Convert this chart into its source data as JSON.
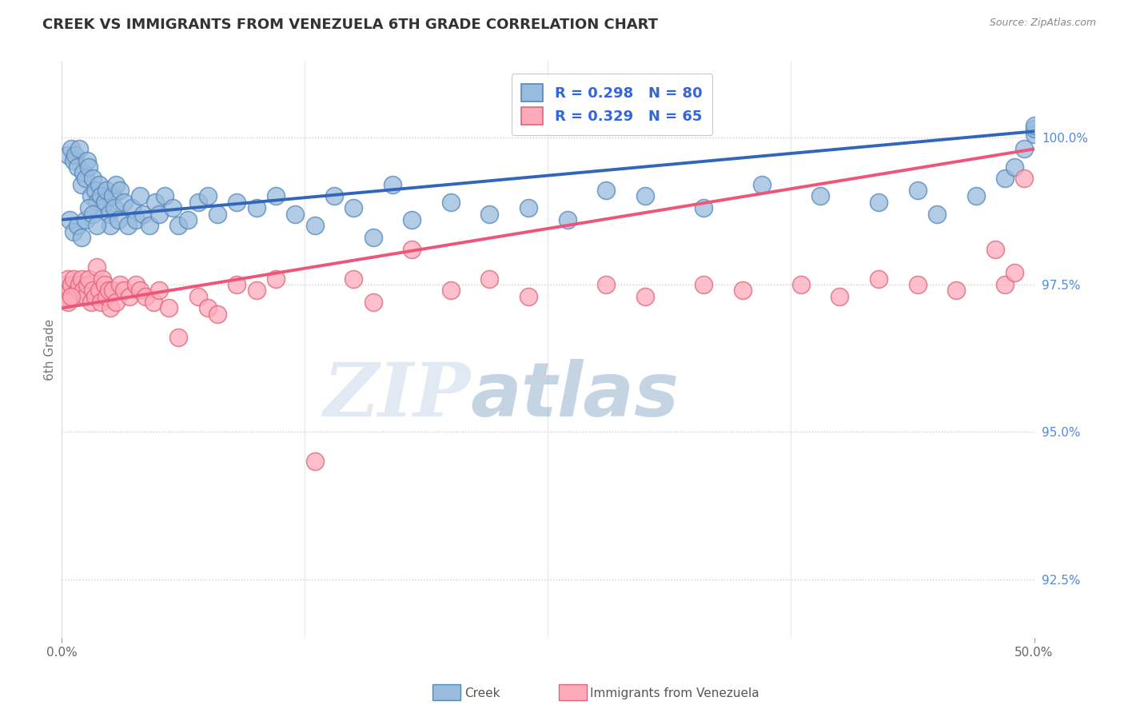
{
  "title": "CREEK VS IMMIGRANTS FROM VENEZUELA 6TH GRADE CORRELATION CHART",
  "source": "Source: ZipAtlas.com",
  "ylabel": "6th Grade",
  "yticks_right": [
    100.0,
    97.5,
    95.0,
    92.5
  ],
  "ytick_labels_right": [
    "100.0%",
    "97.5%",
    "95.0%",
    "92.5%"
  ],
  "xmin": 0.0,
  "xmax": 50.0,
  "ymin": 91.5,
  "ymax": 101.3,
  "blue_scatter_color": "#99BBDD",
  "blue_edge_color": "#5588BB",
  "pink_scatter_color": "#FFAABB",
  "pink_edge_color": "#DD6677",
  "blue_line_color": "#3366BB",
  "pink_line_color": "#EE5577",
  "legend_blue_R": "0.298",
  "legend_blue_N": "80",
  "legend_pink_R": "0.329",
  "legend_pink_N": "65",
  "legend_label_blue": "Creek",
  "legend_label_pink": "Immigrants from Venezuela",
  "watermark_zip": "ZIP",
  "watermark_atlas": "atlas",
  "blue_trend_x": [
    0.0,
    50.0
  ],
  "blue_trend_y": [
    98.6,
    100.1
  ],
  "pink_trend_x": [
    0.0,
    50.0
  ],
  "pink_trend_y": [
    97.1,
    99.8
  ],
  "blue_scatter_x": [
    0.3,
    0.5,
    0.6,
    0.7,
    0.8,
    0.9,
    1.0,
    1.1,
    1.2,
    1.3,
    1.4,
    1.5,
    1.6,
    1.7,
    1.8,
    1.9,
    2.0,
    2.1,
    2.2,
    2.3,
    2.4,
    2.5,
    2.6,
    2.7,
    2.8,
    2.9,
    3.0,
    3.2,
    3.4,
    3.6,
    3.8,
    4.0,
    4.2,
    4.5,
    4.8,
    5.0,
    5.3,
    5.7,
    6.0,
    6.5,
    7.0,
    7.5,
    8.0,
    9.0,
    10.0,
    11.0,
    12.0,
    13.0,
    14.0,
    15.0,
    16.0,
    17.0,
    18.0,
    20.0,
    22.0,
    24.0,
    26.0,
    28.0,
    30.0,
    33.0,
    36.0,
    39.0,
    42.0,
    44.0,
    45.0,
    47.0,
    48.5,
    49.0,
    49.5,
    50.0,
    50.0,
    50.0,
    0.4,
    0.6,
    0.8,
    1.0,
    1.2,
    1.4,
    1.6,
    1.8
  ],
  "blue_scatter_y": [
    99.7,
    99.8,
    99.6,
    99.7,
    99.5,
    99.8,
    99.2,
    99.4,
    99.3,
    99.6,
    99.5,
    99.0,
    99.3,
    99.1,
    98.9,
    99.2,
    99.0,
    98.8,
    98.9,
    99.1,
    98.7,
    98.5,
    99.0,
    98.8,
    99.2,
    98.6,
    99.1,
    98.9,
    98.5,
    98.8,
    98.6,
    99.0,
    98.7,
    98.5,
    98.9,
    98.7,
    99.0,
    98.8,
    98.5,
    98.6,
    98.9,
    99.0,
    98.7,
    98.9,
    98.8,
    99.0,
    98.7,
    98.5,
    99.0,
    98.8,
    98.3,
    99.2,
    98.6,
    98.9,
    98.7,
    98.8,
    98.6,
    99.1,
    99.0,
    98.8,
    99.2,
    99.0,
    98.9,
    99.1,
    98.7,
    99.0,
    99.3,
    99.5,
    99.8,
    100.05,
    100.15,
    100.2,
    98.6,
    98.4,
    98.5,
    98.3,
    98.6,
    98.8,
    98.7,
    98.5
  ],
  "pink_scatter_x": [
    0.1,
    0.2,
    0.3,
    0.4,
    0.5,
    0.6,
    0.7,
    0.8,
    0.9,
    1.0,
    1.1,
    1.2,
    1.3,
    1.4,
    1.5,
    1.6,
    1.7,
    1.8,
    1.9,
    2.0,
    2.1,
    2.2,
    2.3,
    2.4,
    2.5,
    2.6,
    2.8,
    3.0,
    3.2,
    3.5,
    3.8,
    4.0,
    4.3,
    4.7,
    5.0,
    5.5,
    6.0,
    7.0,
    7.5,
    8.0,
    9.0,
    10.0,
    11.0,
    13.0,
    15.0,
    16.0,
    18.0,
    20.0,
    22.0,
    24.0,
    28.0,
    30.0,
    33.0,
    35.0,
    38.0,
    40.0,
    42.0,
    44.0,
    46.0,
    48.0,
    48.5,
    49.0,
    49.5,
    0.3,
    0.5
  ],
  "pink_scatter_y": [
    97.3,
    97.5,
    97.6,
    97.4,
    97.5,
    97.6,
    97.3,
    97.4,
    97.5,
    97.6,
    97.4,
    97.3,
    97.5,
    97.6,
    97.2,
    97.4,
    97.3,
    97.8,
    97.4,
    97.2,
    97.6,
    97.5,
    97.3,
    97.4,
    97.1,
    97.4,
    97.2,
    97.5,
    97.4,
    97.3,
    97.5,
    97.4,
    97.3,
    97.2,
    97.4,
    97.1,
    96.6,
    97.3,
    97.1,
    97.0,
    97.5,
    97.4,
    97.6,
    94.5,
    97.6,
    97.2,
    98.1,
    97.4,
    97.6,
    97.3,
    97.5,
    97.3,
    97.5,
    97.4,
    97.5,
    97.3,
    97.6,
    97.5,
    97.4,
    98.1,
    97.5,
    97.7,
    99.3,
    97.2,
    97.3
  ]
}
